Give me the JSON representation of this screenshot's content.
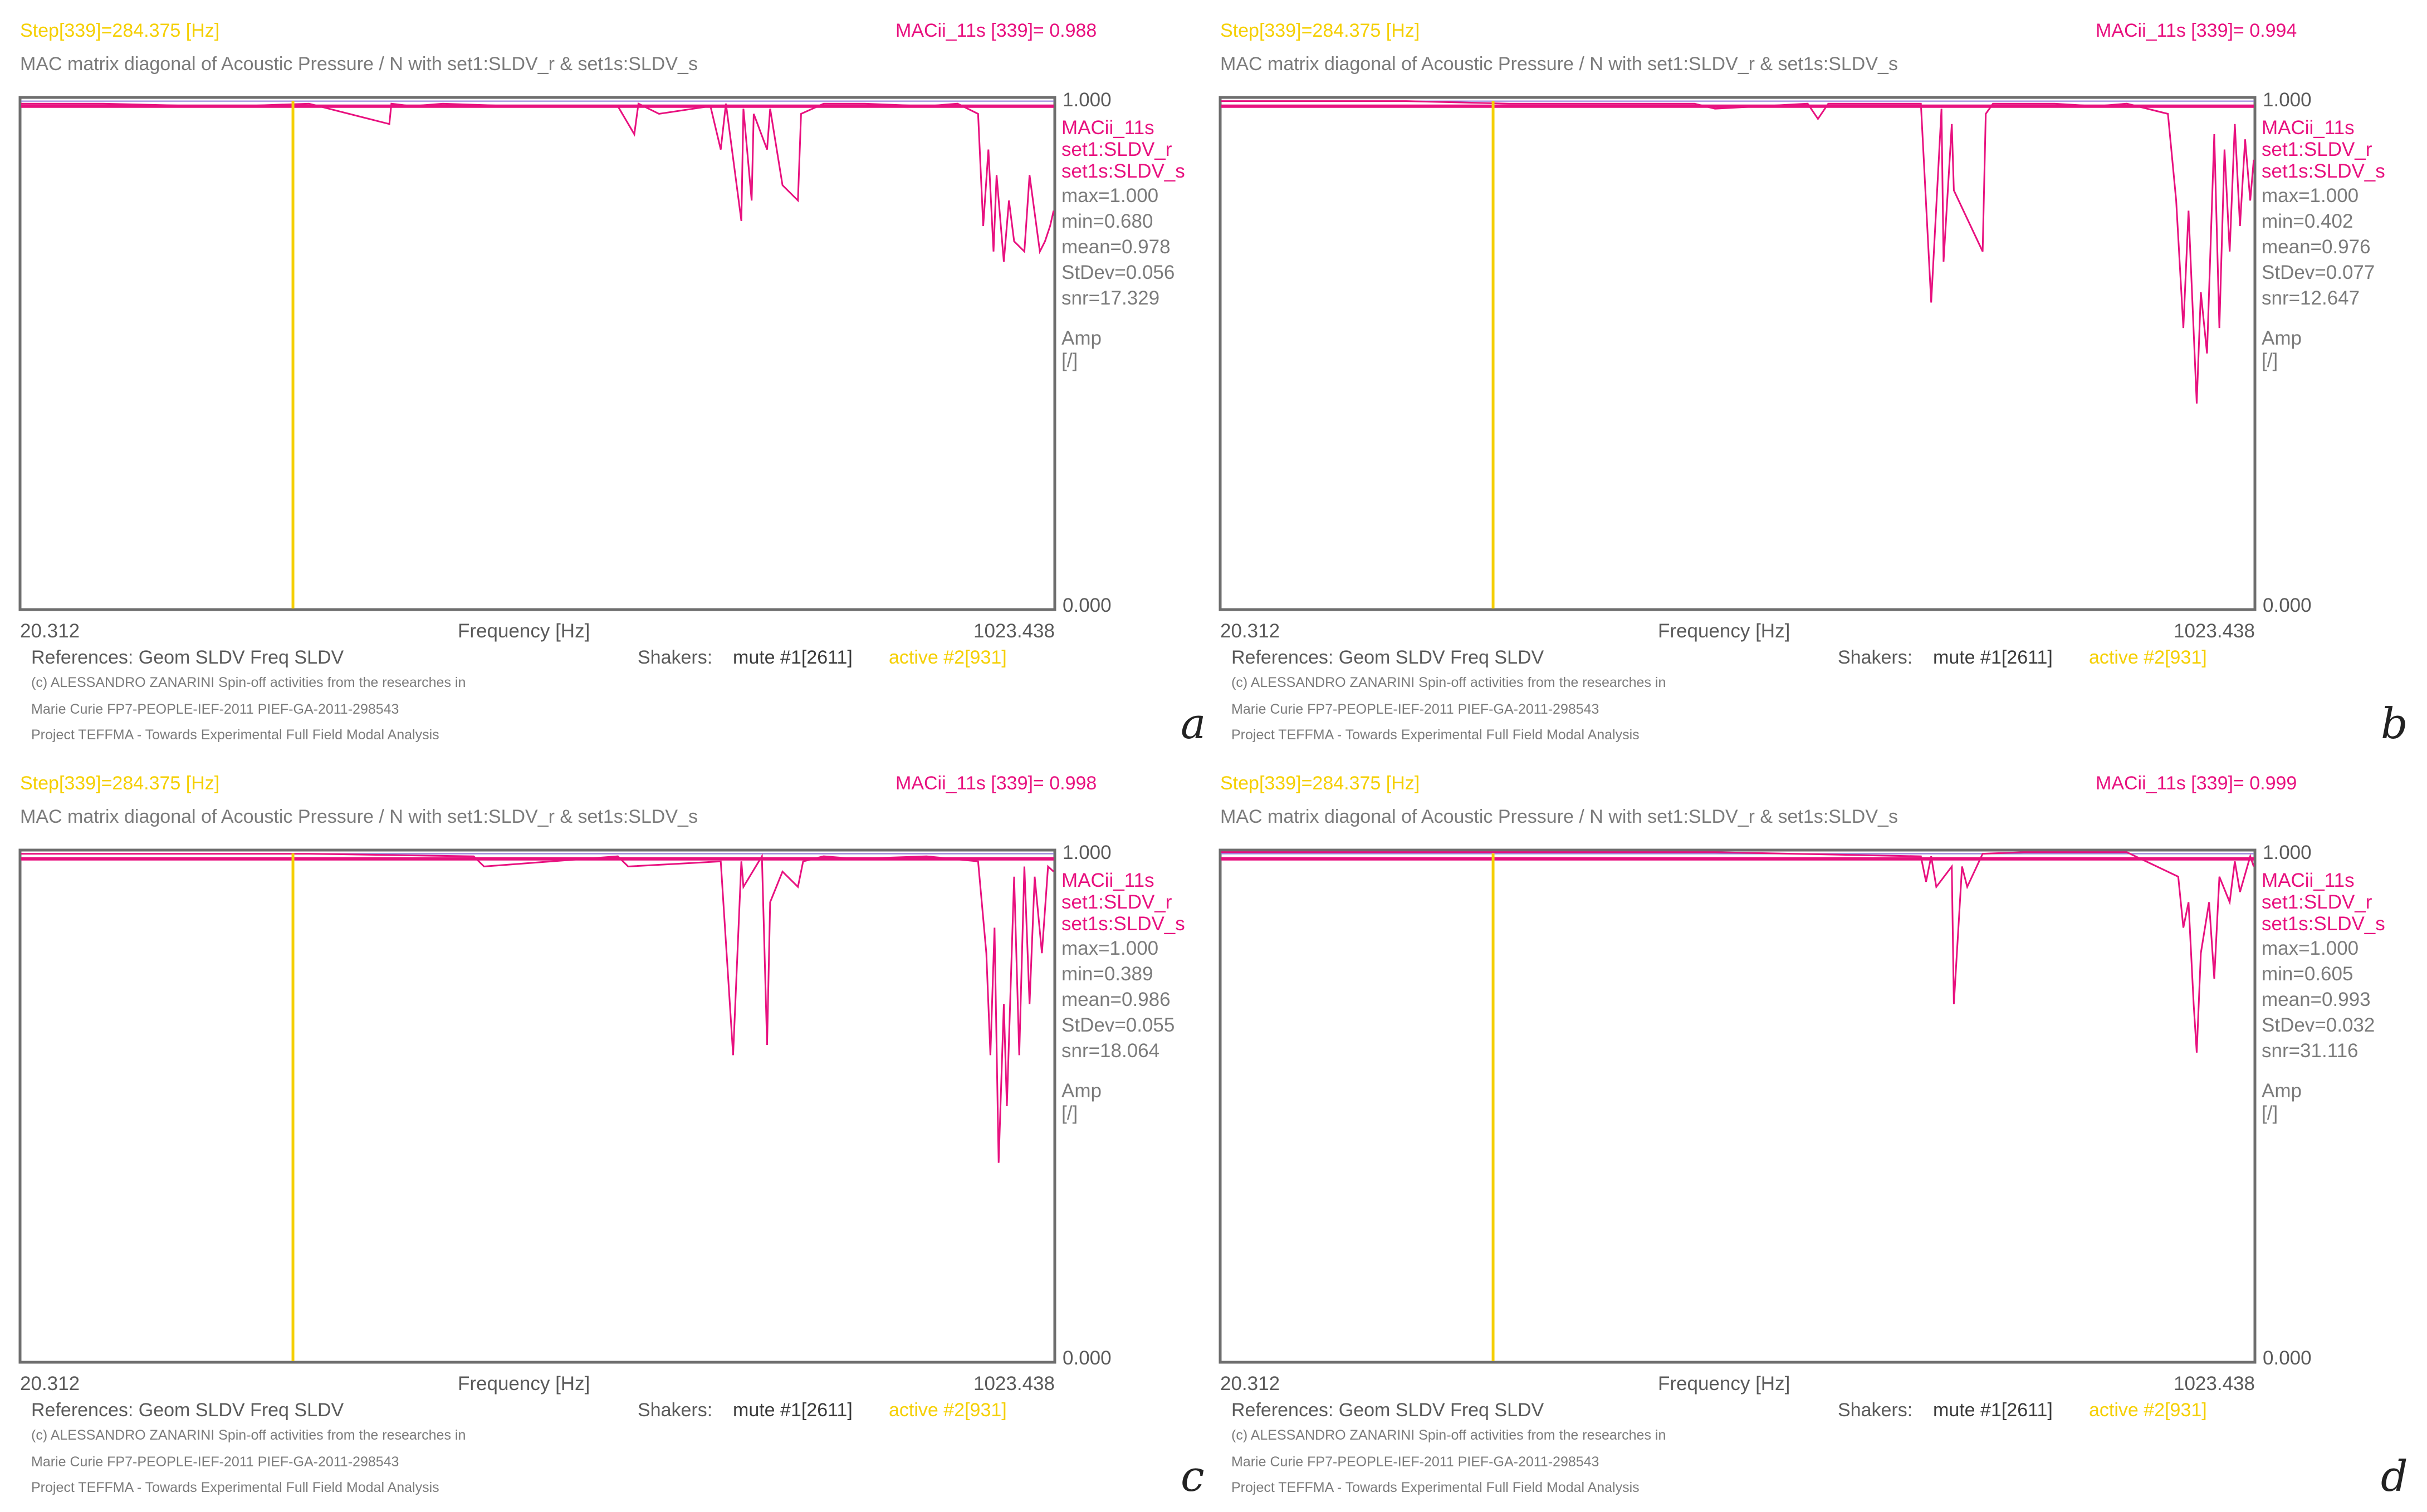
{
  "common": {
    "step": "Step[339]=284.375 [Hz]",
    "subtitle": "MAC matrix diagonal of Acoustic Pressure / N with set1:SLDV_r & set1s:SLDV_s",
    "legend": [
      "MACii_11s",
      "set1:SLDV_r",
      "set1s:SLDV_s"
    ],
    "x_min_label": "20.312",
    "x_max_label": "1023.438",
    "x_axis_label": "Frequency [Hz]",
    "y_max_label": "1.000",
    "y_min_label": "0.000",
    "unit_label_1": "Amp",
    "unit_label_2": "[/]",
    "references": "References: Geom SLDV Freq SLDV",
    "shakers": "Shakers:",
    "mute": "mute #1[2611]",
    "active": "active #2[931]",
    "credit_1": "(c) ALESSANDRO ZANARINI Spin-off activities from the researches in",
    "credit_2": "Marie Curie FP7-PEOPLE-IEF-2011 PIEF-GA-2011-298543",
    "credit_3": "Project TEFFMA - Towards Experimental Full Field Modal Analysis"
  },
  "colors": {
    "series": "#e8117f",
    "cursor": "#f5cf00",
    "frame": "#6e6e6e",
    "trace2": "#8b73d6"
  },
  "panels": [
    {
      "letter": "a",
      "mac_readout": "MACii_11s [339]= 0.988",
      "stats": [
        "max=1.000",
        "min=0.680",
        "mean=0.978",
        "StDev=0.056",
        "snr=17.329"
      ]
    },
    {
      "letter": "b",
      "mac_readout": "MACii_11s [339]= 0.994",
      "stats": [
        "max=1.000",
        "min=0.402",
        "mean=0.976",
        "StDev=0.077",
        "snr=12.647"
      ]
    },
    {
      "letter": "c",
      "mac_readout": "MACii_11s [339]= 0.998",
      "stats": [
        "max=1.000",
        "min=0.389",
        "mean=0.986",
        "StDev=0.055",
        "snr=18.064"
      ]
    },
    {
      "letter": "d",
      "mac_readout": "MACii_11s [339]= 0.999",
      "stats": [
        "max=1.000",
        "min=0.605",
        "mean=0.993",
        "StDev=0.032",
        "snr=31.116"
      ]
    }
  ],
  "chart_data": [
    {
      "type": "line",
      "title": "MAC matrix diagonal of Acoustic Pressure / N with set1:SLDV_r & set1s:SLDV_s",
      "xlabel": "Frequency [Hz]",
      "ylabel": "Amp [/]",
      "xlim": [
        20.312,
        1023.438
      ],
      "ylim": [
        0,
        1
      ],
      "cursor_x": 284.375,
      "series": [
        {
          "name": "MACii_11s",
          "x": [
            20.3,
            100,
            200,
            230,
            300,
            378,
            380,
            400,
            430,
            500,
            600,
            616,
            620,
            640,
            690,
            700,
            705,
            720,
            722,
            730,
            732,
            745,
            748,
            760,
            775,
            778,
            800,
            840,
            900,
            930,
            950,
            955,
            960,
            965,
            968,
            975,
            980,
            985,
            995,
            1000,
            1010,
            1015,
            1020,
            1023.4
          ],
          "values": [
            0.99,
            0.99,
            0.985,
            0.985,
            0.99,
            0.95,
            0.99,
            0.985,
            0.99,
            0.985,
            0.985,
            0.93,
            0.99,
            0.97,
            0.985,
            0.9,
            0.99,
            0.76,
            0.98,
            0.8,
            0.97,
            0.9,
            0.98,
            0.83,
            0.8,
            0.97,
            0.99,
            0.99,
            0.985,
            0.99,
            0.97,
            0.75,
            0.9,
            0.7,
            0.85,
            0.68,
            0.8,
            0.72,
            0.7,
            0.85,
            0.7,
            0.72,
            0.75,
            0.78
          ]
        }
      ]
    },
    {
      "type": "line",
      "title": "MAC matrix diagonal of Acoustic Pressure / N with set1:SLDV_r & set1s:SLDV_s",
      "xlabel": "Frequency [Hz]",
      "ylabel": "Amp [/]",
      "xlim": [
        20.312,
        1023.438
      ],
      "ylim": [
        0,
        1
      ],
      "cursor_x": 284.375,
      "series": [
        {
          "name": "MACii_11s",
          "x": [
            20.3,
            200,
            300,
            480,
            500,
            590,
            600,
            610,
            700,
            710,
            720,
            722,
            730,
            732,
            760,
            763,
            770,
            800,
            830,
            870,
            900,
            940,
            948,
            955,
            960,
            968,
            972,
            978,
            985,
            990,
            995,
            1000,
            1005,
            1010,
            1015,
            1020,
            1023.4
          ],
          "values": [
            0.995,
            0.995,
            0.99,
            0.99,
            0.98,
            0.99,
            0.96,
            0.99,
            0.99,
            0.6,
            0.98,
            0.68,
            0.95,
            0.82,
            0.7,
            0.97,
            0.99,
            0.99,
            0.99,
            0.985,
            0.99,
            0.97,
            0.8,
            0.55,
            0.78,
            0.402,
            0.62,
            0.5,
            0.93,
            0.55,
            0.9,
            0.7,
            0.95,
            0.75,
            0.92,
            0.8,
            0.88
          ]
        }
      ]
    },
    {
      "type": "line",
      "title": "MAC matrix diagonal of Acoustic Pressure / N with set1:SLDV_r & set1s:SLDV_s",
      "xlabel": "Frequency [Hz]",
      "ylabel": "Amp [/]",
      "xlim": [
        20.312,
        1023.438
      ],
      "ylim": [
        0,
        1
      ],
      "cursor_x": 284.375,
      "series": [
        {
          "name": "MACii_11s",
          "x": [
            20.3,
            300,
            460,
            470,
            600,
            610,
            700,
            712,
            720,
            722,
            740,
            745,
            748,
            760,
            775,
            780,
            800,
            830,
            900,
            950,
            958,
            962,
            966,
            970,
            975,
            978,
            985,
            990,
            995,
            1000,
            1005,
            1012,
            1018,
            1023.4
          ],
          "values": [
            0.995,
            0.995,
            0.99,
            0.97,
            0.99,
            0.97,
            0.98,
            0.6,
            0.98,
            0.93,
            0.99,
            0.62,
            0.9,
            0.96,
            0.93,
            0.98,
            0.99,
            0.985,
            0.99,
            0.98,
            0.8,
            0.6,
            0.85,
            0.389,
            0.7,
            0.5,
            0.95,
            0.6,
            0.97,
            0.7,
            0.95,
            0.8,
            0.97,
            0.96
          ]
        }
      ]
    },
    {
      "type": "line",
      "title": "MAC matrix diagonal of Acoustic Pressure / N with set1:SLDV_r & set1s:SLDV_s",
      "xlabel": "Frequency [Hz]",
      "ylabel": "Amp [/]",
      "xlim": [
        20.312,
        1023.438
      ],
      "ylim": [
        0,
        1
      ],
      "cursor_x": 284.375,
      "series": [
        {
          "name": "MACii_11s",
          "x": [
            20.3,
            500,
            700,
            705,
            710,
            715,
            730,
            732,
            740,
            745,
            760,
            800,
            900,
            950,
            955,
            960,
            965,
            968,
            972,
            980,
            985,
            990,
            1000,
            1005,
            1010,
            1020,
            1023.4
          ],
          "values": [
            0.998,
            0.998,
            0.99,
            0.94,
            0.99,
            0.93,
            0.97,
            0.7,
            0.97,
            0.93,
            0.995,
            0.998,
            0.998,
            0.95,
            0.85,
            0.9,
            0.7,
            0.605,
            0.8,
            0.9,
            0.75,
            0.95,
            0.9,
            0.98,
            0.92,
            0.99,
            0.97
          ]
        }
      ]
    }
  ]
}
